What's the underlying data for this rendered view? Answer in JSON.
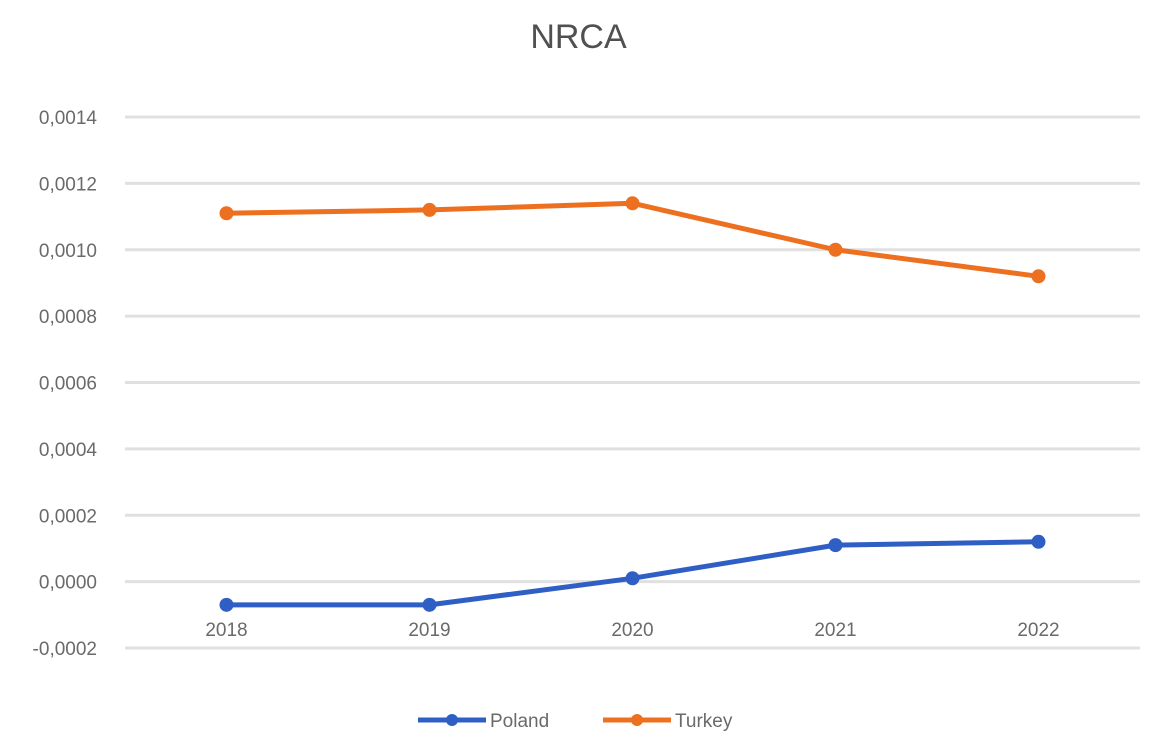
{
  "chart_data": {
    "type": "line",
    "title": "NRCA",
    "xlabel": "",
    "ylabel": "",
    "categories": [
      "2018",
      "2019",
      "2020",
      "2021",
      "2022"
    ],
    "series": [
      {
        "name": "Poland",
        "color": "#2f5fc4",
        "values": [
          -7e-05,
          -7e-05,
          1e-05,
          0.00011,
          0.00012
        ]
      },
      {
        "name": "Turkey",
        "color": "#ed7020",
        "values": [
          0.00111,
          0.00112,
          0.00114,
          0.001,
          0.00092
        ]
      }
    ],
    "yticks": [
      "0,0014",
      "0,0012",
      "0,0010",
      "0,0008",
      "0,0006",
      "0,0004",
      "0,0002",
      "0,0000",
      "-0,0002"
    ],
    "ylim": [
      -0.0002,
      0.0014
    ],
    "grid": true,
    "legend_position": "bottom"
  }
}
